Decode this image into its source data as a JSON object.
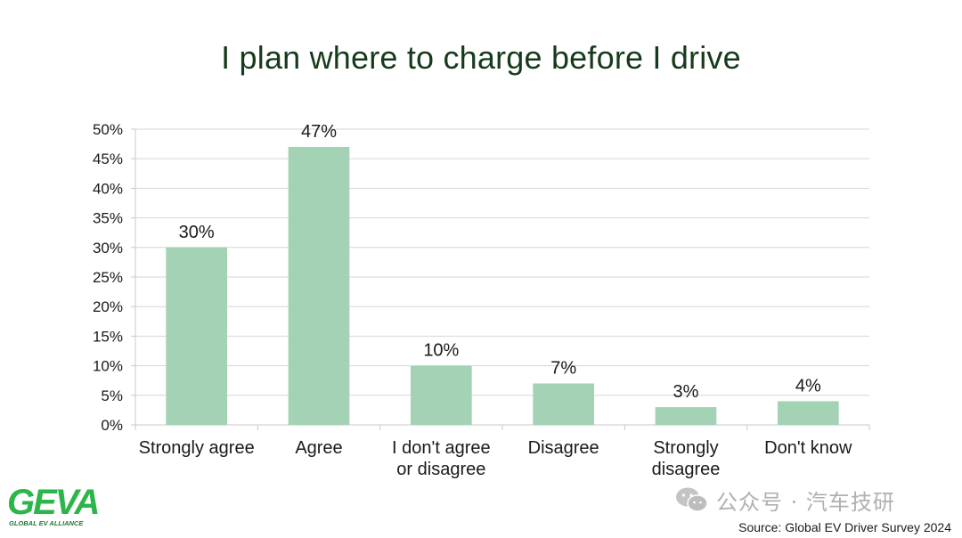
{
  "title": "I plan where to charge before I drive",
  "chart_data": {
    "type": "bar",
    "categories": [
      [
        "Strongly agree"
      ],
      [
        "Agree"
      ],
      [
        "I don't agree",
        "or disagree"
      ],
      [
        "Disagree"
      ],
      [
        "Strongly",
        "disagree"
      ],
      [
        "Don't know"
      ]
    ],
    "values": [
      30,
      47,
      10,
      7,
      3,
      4
    ],
    "data_labels": [
      "30%",
      "47%",
      "10%",
      "7%",
      "3%",
      "4%"
    ],
    "ylim": [
      0,
      50
    ],
    "ytick_labels": [
      "0%",
      "5%",
      "10%",
      "15%",
      "20%",
      "25%",
      "30%",
      "35%",
      "40%",
      "45%",
      "50%"
    ],
    "grid": true,
    "bar_color": "#a3d2b4",
    "grid_color": "#d6d6d6"
  },
  "logo": {
    "text": "GEVA",
    "subtitle": "GLOBAL EV ALLIANCE",
    "color": "#2db54a"
  },
  "watermark": {
    "text": "公众号 · 汽车技研",
    "icon": "wechat-icon"
  },
  "source": "Source: Global EV Driver Survey 2024"
}
